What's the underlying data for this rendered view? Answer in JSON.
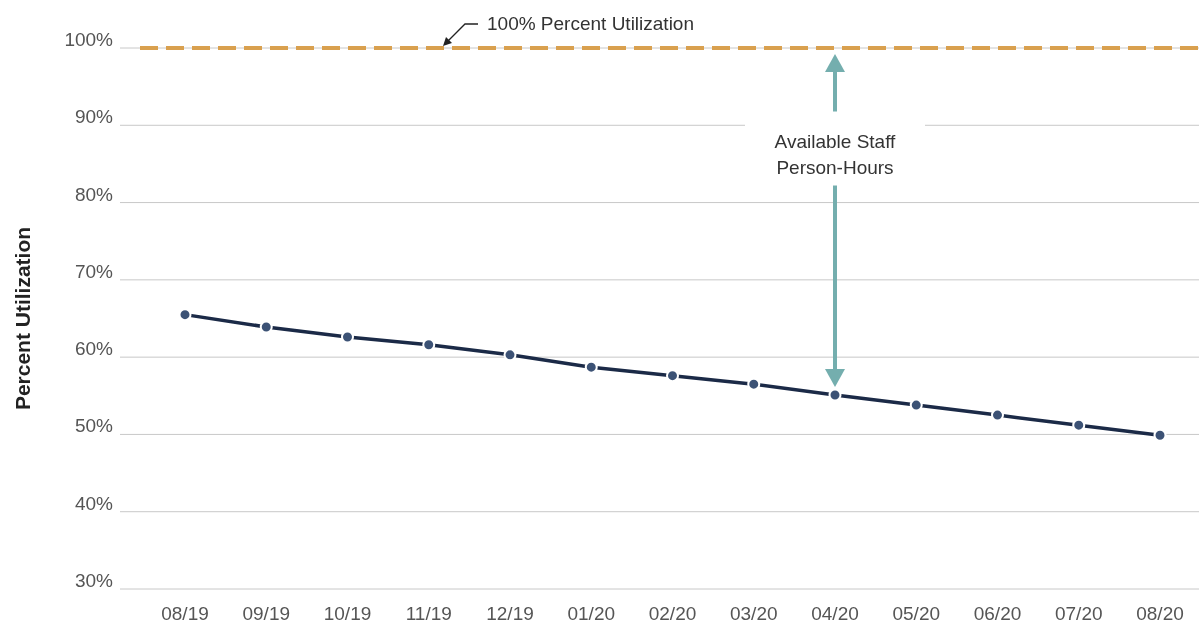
{
  "chart_data": {
    "type": "line",
    "ylabel": "Percent Utilization",
    "categories": [
      "08/19",
      "09/19",
      "10/19",
      "11/19",
      "12/19",
      "01/20",
      "02/20",
      "03/20",
      "04/20",
      "05/20",
      "06/20",
      "07/20",
      "08/20"
    ],
    "series": [
      {
        "color": "#1b2a47",
        "values": [
          65.5,
          63.9,
          62.6,
          61.6,
          60.3,
          58.7,
          57.6,
          56.5,
          55.1,
          53.8,
          52.5,
          51.2,
          49.9
        ]
      }
    ],
    "ylim": [
      30,
      100
    ],
    "yticks": [
      {
        "value": 30,
        "label": "30%"
      },
      {
        "value": 40,
        "label": "40%"
      },
      {
        "value": 50,
        "label": "50%"
      },
      {
        "value": 60,
        "label": "60%"
      },
      {
        "value": 70,
        "label": "70%"
      },
      {
        "value": 80,
        "label": "80%"
      },
      {
        "value": 90,
        "label": "90%"
      },
      {
        "value": 100,
        "label": "100%"
      }
    ],
    "grid": "y",
    "marker": "circle",
    "line_style": "solid",
    "ref_lines": [
      {
        "axis": "y",
        "value": 100,
        "label": "100% Percent Utilization",
        "color": "#d9a04e",
        "line_style": "dashed"
      }
    ],
    "annotations": [
      "Available Staff Person-Hours"
    ]
  }
}
